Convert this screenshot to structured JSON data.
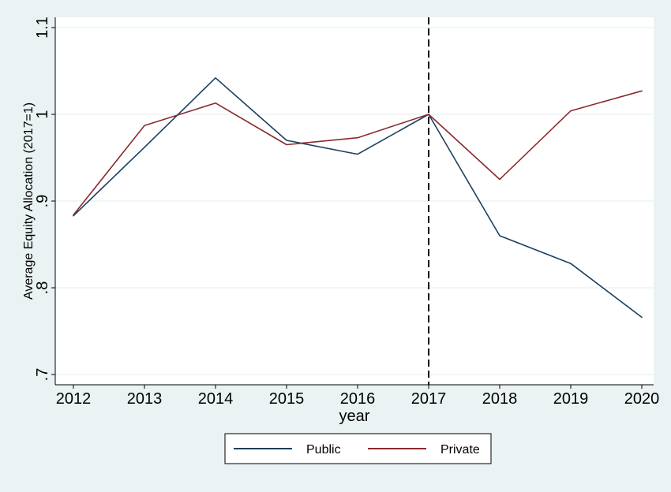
{
  "chart_data": {
    "type": "line",
    "title": "",
    "xlabel": "year",
    "ylabel": "Average Equity Allocation (2017=1)",
    "x": [
      2012,
      2013,
      2014,
      2015,
      2016,
      2017,
      2018,
      2019,
      2020
    ],
    "x_tick_labels": [
      "2012",
      "2013",
      "2014",
      "2015",
      "2016",
      "2017",
      "2018",
      "2019",
      "2020"
    ],
    "y_ticks": [
      0.7,
      0.8,
      0.9,
      1.0,
      1.1
    ],
    "y_tick_labels": [
      ".7",
      ".8",
      ".9",
      "1",
      "1.1"
    ],
    "xlim": [
      2012,
      2020
    ],
    "ylim": [
      0.7,
      1.1
    ],
    "grid": "horizontal",
    "reference_line": {
      "x": 2017,
      "style": "dashed",
      "color": "#000000"
    },
    "legend_position": "bottom",
    "series": [
      {
        "name": "Public",
        "color": "#1b3f5f",
        "values": [
          0.883,
          0.962,
          1.042,
          0.97,
          0.954,
          1.0,
          0.86,
          0.828,
          0.766
        ]
      },
      {
        "name": "Private",
        "color": "#8b2a2e",
        "values": [
          0.884,
          0.987,
          1.013,
          0.965,
          0.973,
          1.0,
          0.925,
          1.004,
          1.027
        ]
      }
    ]
  }
}
